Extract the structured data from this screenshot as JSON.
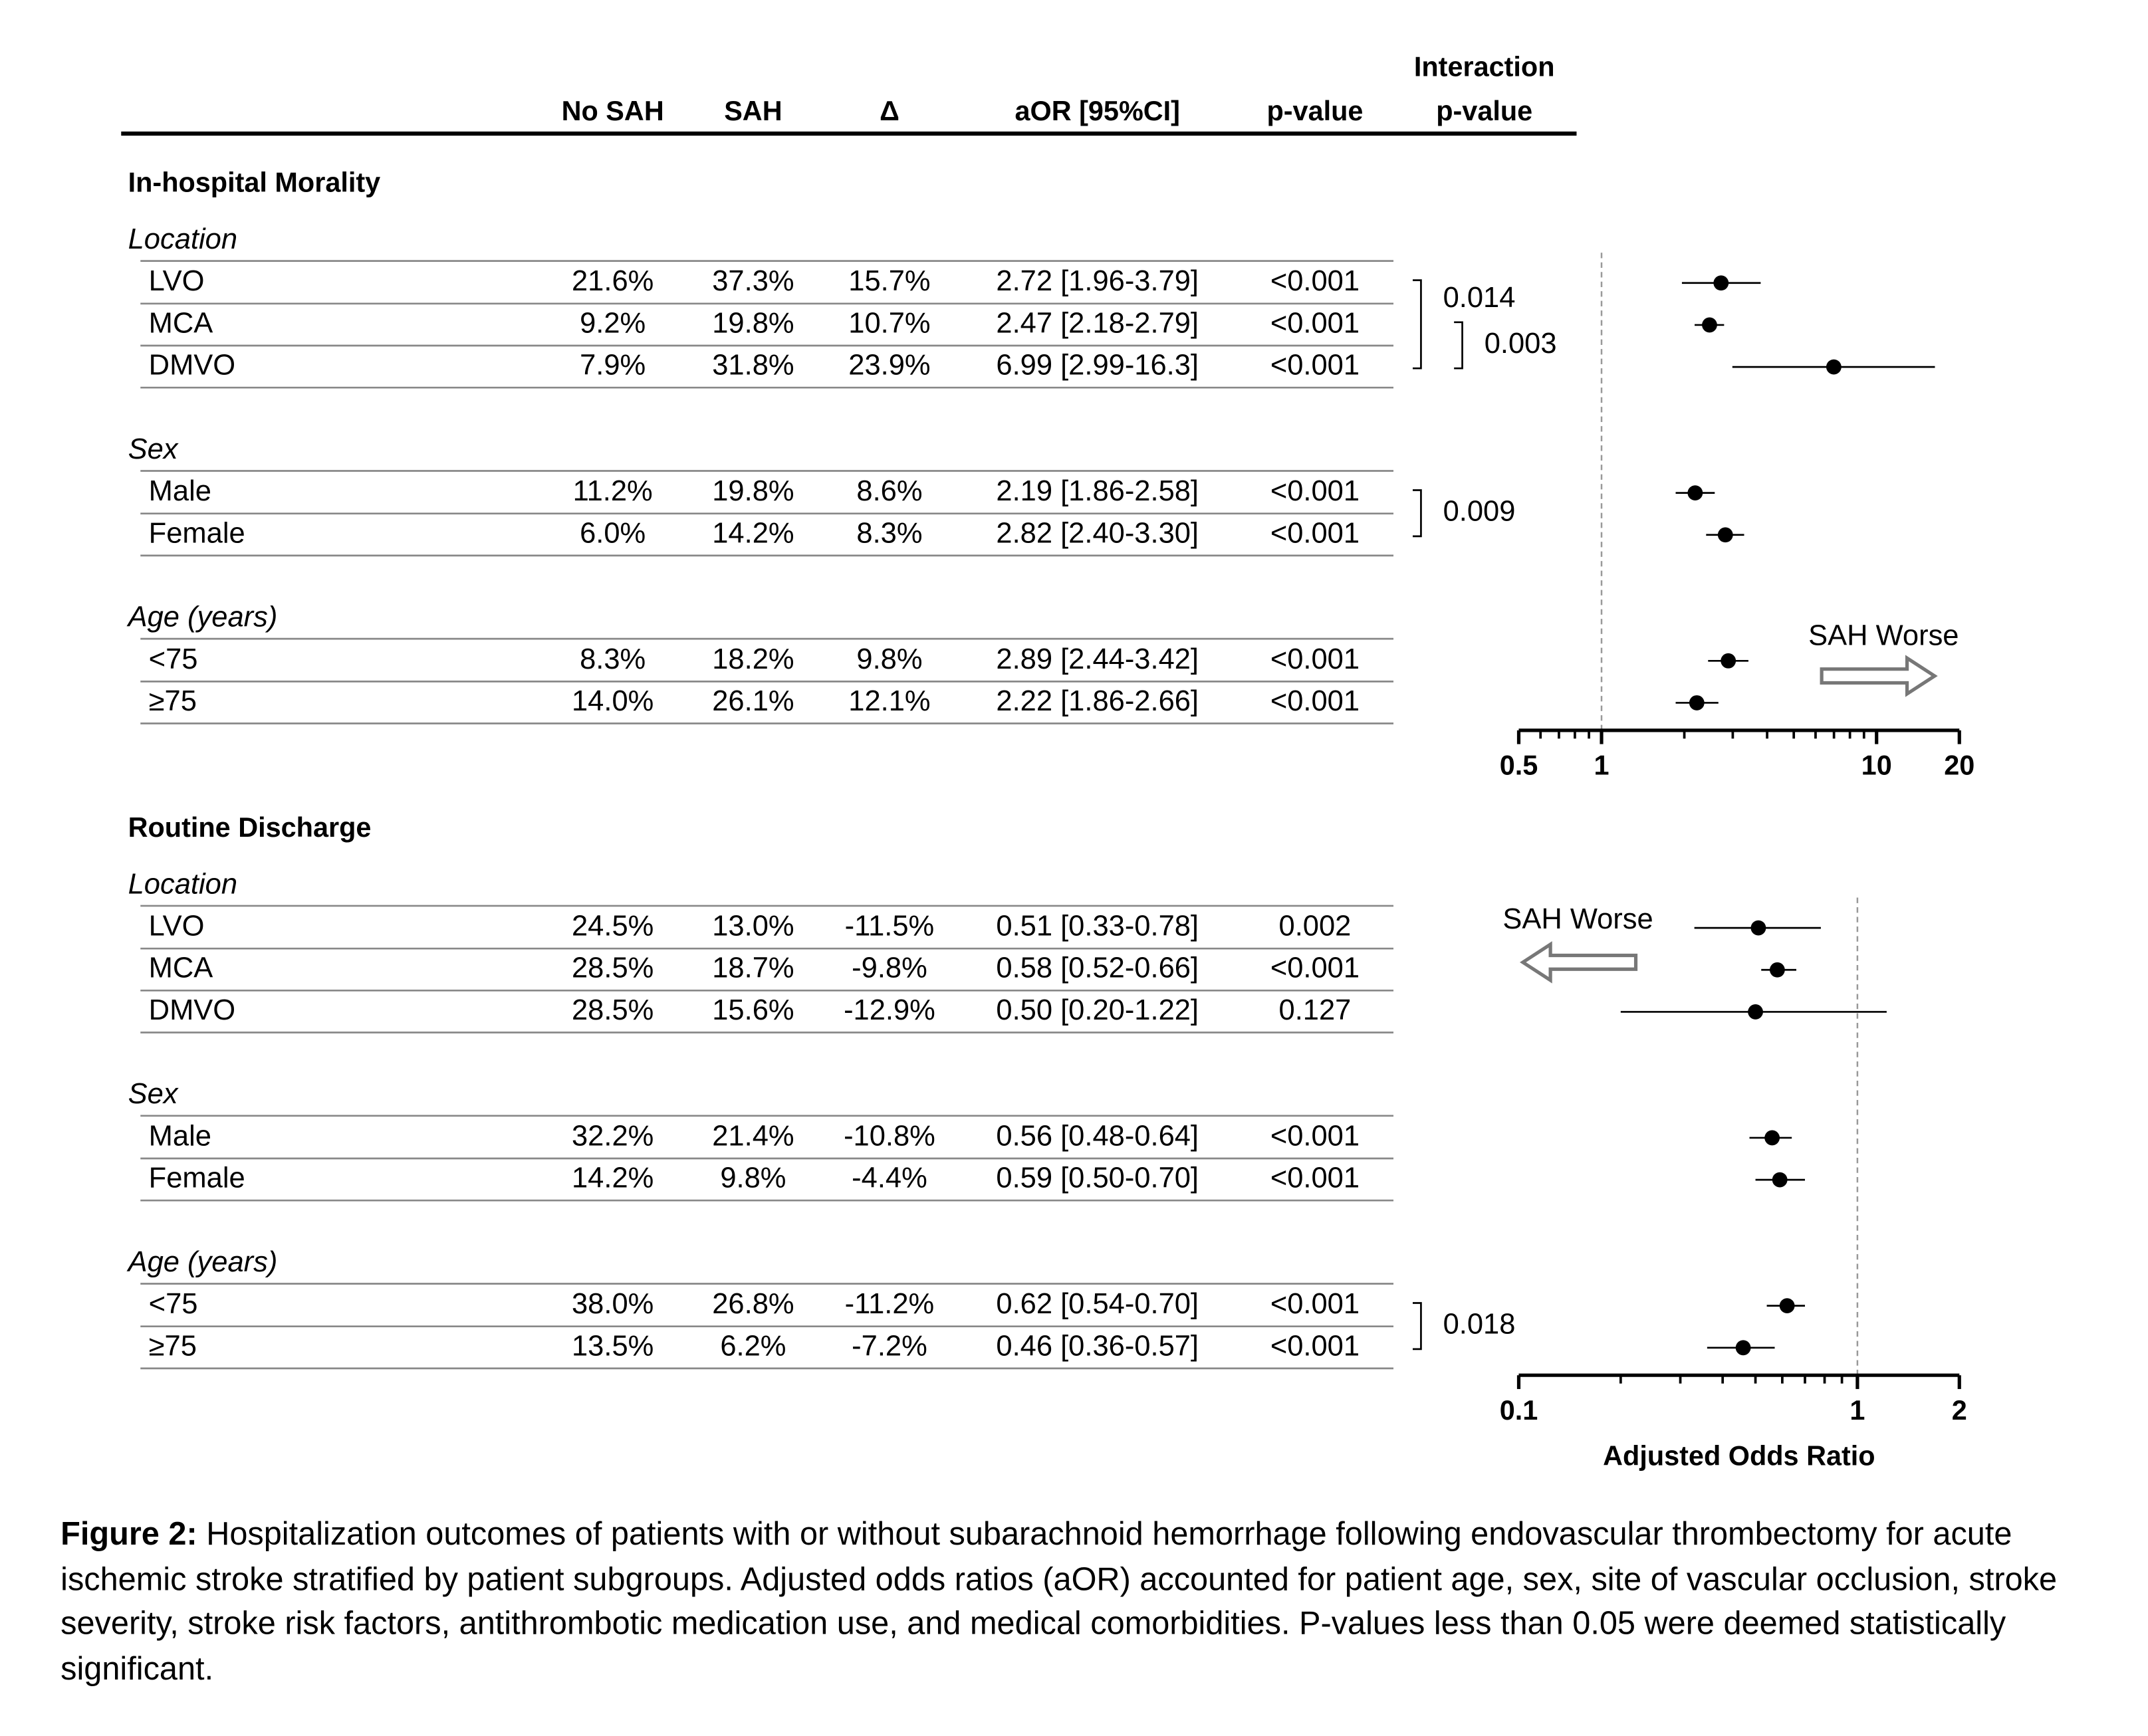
{
  "table": {
    "columns": [
      "No SAH",
      "SAH",
      "Δ",
      "aOR [95%CI]",
      "p-value"
    ],
    "interaction_header": [
      "Interaction",
      "p-value"
    ],
    "sections": [
      {
        "title": "In-hospital Morality",
        "groups": [
          {
            "name": "Location",
            "interaction": [
              "0.014",
              "0.003"
            ],
            "rows": [
              [
                "LVO",
                "21.6%",
                "37.3%",
                "15.7%",
                "2.72 [1.96-3.79]",
                "<0.001"
              ],
              [
                "MCA",
                "9.2%",
                "19.8%",
                "10.7%",
                "2.47 [2.18-2.79]",
                "<0.001"
              ],
              [
                "DMVO",
                "7.9%",
                "31.8%",
                "23.9%",
                "6.99 [2.99-16.3]",
                "<0.001"
              ]
            ]
          },
          {
            "name": "Sex",
            "interaction": [
              "0.009"
            ],
            "rows": [
              [
                "Male",
                "11.2%",
                "19.8%",
                "8.6%",
                "2.19 [1.86-2.58]",
                "<0.001"
              ],
              [
                "Female",
                "6.0%",
                "14.2%",
                "8.3%",
                "2.82 [2.40-3.30]",
                "<0.001"
              ]
            ]
          },
          {
            "name": "Age (years)",
            "rows": [
              [
                "<75",
                "8.3%",
                "18.2%",
                "9.8%",
                "2.89 [2.44-3.42]",
                "<0.001"
              ],
              [
                "≥75",
                "14.0%",
                "26.1%",
                "12.1%",
                "2.22 [1.86-2.66]",
                "<0.001"
              ]
            ]
          }
        ]
      },
      {
        "title": "Routine Discharge",
        "groups": [
          {
            "name": "Location",
            "rows": [
              [
                "LVO",
                "24.5%",
                "13.0%",
                "-11.5%",
                "0.51 [0.33-0.78]",
                "0.002"
              ],
              [
                "MCA",
                "28.5%",
                "18.7%",
                "-9.8%",
                "0.58 [0.52-0.66]",
                "<0.001"
              ],
              [
                "DMVO",
                "28.5%",
                "15.6%",
                "-12.9%",
                "0.50 [0.20-1.22]",
                "0.127"
              ]
            ]
          },
          {
            "name": "Sex",
            "rows": [
              [
                "Male",
                "32.2%",
                "21.4%",
                "-10.8%",
                "0.56 [0.48-0.64]",
                "<0.001"
              ],
              [
                "Female",
                "14.2%",
                "9.8%",
                "-4.4%",
                "0.59 [0.50-0.70]",
                "<0.001"
              ]
            ]
          },
          {
            "name": "Age (years)",
            "interaction": [
              "0.018"
            ],
            "rows": [
              [
                "<75",
                "38.0%",
                "26.8%",
                "-11.2%",
                "0.62 [0.54-0.70]",
                "<0.001"
              ],
              [
                "≥75",
                "13.5%",
                "6.2%",
                "-7.2%",
                "0.46 [0.36-0.57]",
                "<0.001"
              ]
            ]
          }
        ]
      }
    ]
  },
  "chart_data": [
    {
      "type": "forest",
      "log_scale": true,
      "xlim": [
        0.5,
        20
      ],
      "xticks": [
        0.5,
        1,
        10,
        20
      ],
      "minor_xticks": [
        0.6,
        0.7,
        0.8,
        0.9,
        2,
        3,
        4,
        5,
        6,
        7,
        8,
        9
      ],
      "reference_line": 1,
      "annotation": "SAH Worse",
      "annotation_direction": "right",
      "color": "#000000",
      "values": [
        2.72,
        2.47,
        6.99,
        2.19,
        2.82,
        2.89,
        2.22
      ],
      "lower": [
        1.96,
        2.18,
        2.99,
        1.86,
        2.4,
        2.44,
        1.86
      ],
      "upper": [
        3.79,
        2.79,
        16.3,
        2.58,
        3.3,
        3.42,
        2.66
      ]
    },
    {
      "type": "forest",
      "log_scale": true,
      "xlim": [
        0.1,
        2
      ],
      "xticks": [
        0.1,
        1,
        2
      ],
      "minor_xticks": [
        0.2,
        0.3,
        0.4,
        0.5,
        0.6,
        0.7,
        0.8,
        0.9
      ],
      "reference_line": 1,
      "annotation": "SAH Worse",
      "annotation_direction": "left",
      "xlabel": "Adjusted Odds Ratio",
      "color": "#000000",
      "values": [
        0.51,
        0.58,
        0.5,
        0.56,
        0.59,
        0.62,
        0.46
      ],
      "lower": [
        0.33,
        0.52,
        0.2,
        0.48,
        0.5,
        0.54,
        0.36
      ],
      "upper": [
        0.78,
        0.66,
        1.22,
        0.64,
        0.7,
        0.7,
        0.57
      ]
    }
  ],
  "caption": {
    "label": "Figure 2:",
    "text": "Hospitalization outcomes of patients with or without subarachnoid hemorrhage following endovascular thrombectomy for acute ischemic stroke stratified by patient subgroups. Adjusted odds ratios (aOR) accounted for patient age, sex, site of vascular occlusion, stroke severity, stroke risk factors, antithrombotic medication use, and medical comorbidities. P-values less than 0.05 were deemed statistically significant."
  }
}
